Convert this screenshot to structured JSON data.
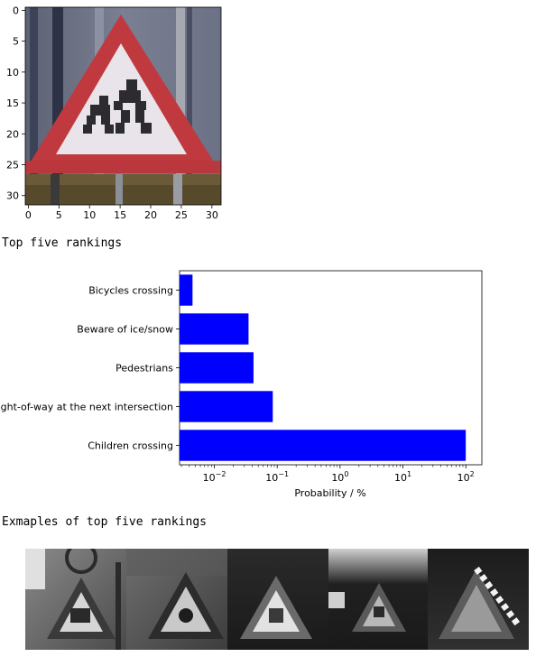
{
  "image_plot": {
    "x_ticks": [
      "0",
      "5",
      "10",
      "15",
      "20",
      "25",
      "30"
    ],
    "y_ticks": [
      "0",
      "5",
      "10",
      "15",
      "20",
      "25",
      "30"
    ],
    "xlim": [
      -0.5,
      31.5
    ],
    "ylim": [
      31.5,
      -0.5
    ],
    "content": "traffic sign photo: red triangular children crossing sign",
    "colors": {
      "sign_red": "#c0393f",
      "sign_white": "#e8e4ea",
      "background": "#6f7488",
      "ground": "#6a5a38"
    }
  },
  "headings": {
    "rankings": "Top five rankings",
    "examples": "Exmaples of top five rankings"
  },
  "chart_data": {
    "type": "bar",
    "orientation": "horizontal",
    "categories": [
      "Children crossing",
      "Right-of-way at the next intersection",
      "Pedestrians",
      "Beware of ice/snow",
      "Bicycles crossing"
    ],
    "values": [
      99.8,
      0.085,
      0.042,
      0.035,
      0.0045
    ],
    "xlabel": "Probability / %",
    "xscale": "log",
    "xlim": [
      0.0028,
      180
    ],
    "x_tick_exponents": [
      "-2",
      "-1",
      "0",
      "1",
      "2"
    ],
    "x_tick_base": "10",
    "bar_color": "#0000ff",
    "grid": false
  },
  "examples": {
    "count": 5,
    "style": "grayscale",
    "items": [
      "example-1",
      "example-2",
      "example-3",
      "example-4",
      "example-5"
    ]
  }
}
